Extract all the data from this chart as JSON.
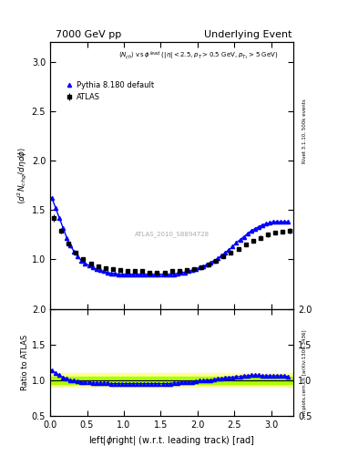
{
  "title_left": "7000 GeV pp",
  "title_right": "Underlying Event",
  "annotation": "ATLAS_2010_S8894728",
  "ylabel_main": "\\u27e8d\\u00b2 N_{chg}/d\\u03b7d\\u03d5\\u27e9",
  "ylabel_ratio": "Ratio to ATLAS",
  "xlabel": "left|\\u03d5right| (w.r.t. leading track) [rad]",
  "ylim_main": [
    0.5,
    3.2
  ],
  "ylim_ratio": [
    0.5,
    2.0
  ],
  "xlim": [
    0.0,
    3.3
  ],
  "yticks_main": [
    1.0,
    1.5,
    2.0,
    2.5,
    3.0
  ],
  "yticks_ratio": [
    0.5,
    1.0,
    1.5,
    2.0
  ],
  "right_ylabel1": "Rivet 3.1.10, 500k events",
  "right_ylabel2": "mcplots.cern.ch [arXiv:1306.3436]",
  "atlas_x": [
    0.05,
    0.15,
    0.25,
    0.35,
    0.45,
    0.55,
    0.65,
    0.75,
    0.85,
    0.95,
    1.05,
    1.15,
    1.25,
    1.35,
    1.45,
    1.55,
    1.65,
    1.75,
    1.85,
    1.95,
    2.05,
    2.15,
    2.25,
    2.35,
    2.45,
    2.55,
    2.65,
    2.75,
    2.85,
    2.95,
    3.05,
    3.15,
    3.25
  ],
  "atlas_y": [
    1.42,
    1.29,
    1.16,
    1.07,
    1.0,
    0.96,
    0.93,
    0.91,
    0.9,
    0.89,
    0.88,
    0.88,
    0.88,
    0.87,
    0.87,
    0.87,
    0.88,
    0.88,
    0.89,
    0.9,
    0.92,
    0.95,
    0.99,
    1.03,
    1.07,
    1.11,
    1.15,
    1.19,
    1.22,
    1.25,
    1.27,
    1.28,
    1.29
  ],
  "atlas_yerr": [
    0.04,
    0.03,
    0.02,
    0.02,
    0.02,
    0.02,
    0.01,
    0.01,
    0.01,
    0.01,
    0.01,
    0.01,
    0.01,
    0.01,
    0.01,
    0.01,
    0.01,
    0.01,
    0.01,
    0.01,
    0.01,
    0.01,
    0.01,
    0.01,
    0.01,
    0.01,
    0.01,
    0.02,
    0.02,
    0.02,
    0.02,
    0.02,
    0.03
  ],
  "pythia_x": [
    0.025,
    0.075,
    0.125,
    0.175,
    0.225,
    0.275,
    0.325,
    0.375,
    0.425,
    0.475,
    0.525,
    0.575,
    0.625,
    0.675,
    0.725,
    0.775,
    0.825,
    0.875,
    0.925,
    0.975,
    1.025,
    1.075,
    1.125,
    1.175,
    1.225,
    1.275,
    1.325,
    1.375,
    1.425,
    1.475,
    1.525,
    1.575,
    1.625,
    1.675,
    1.725,
    1.775,
    1.825,
    1.875,
    1.925,
    1.975,
    2.025,
    2.075,
    2.125,
    2.175,
    2.225,
    2.275,
    2.325,
    2.375,
    2.425,
    2.475,
    2.525,
    2.575,
    2.625,
    2.675,
    2.725,
    2.775,
    2.825,
    2.875,
    2.925,
    2.975,
    3.025,
    3.075,
    3.125,
    3.175,
    3.225
  ],
  "pythia_y": [
    1.62,
    1.52,
    1.42,
    1.32,
    1.22,
    1.14,
    1.08,
    1.03,
    0.99,
    0.96,
    0.94,
    0.92,
    0.9,
    0.89,
    0.88,
    0.87,
    0.86,
    0.86,
    0.85,
    0.85,
    0.85,
    0.85,
    0.85,
    0.85,
    0.85,
    0.85,
    0.85,
    0.85,
    0.85,
    0.85,
    0.85,
    0.85,
    0.85,
    0.85,
    0.86,
    0.87,
    0.87,
    0.88,
    0.89,
    0.9,
    0.92,
    0.93,
    0.95,
    0.97,
    0.99,
    1.01,
    1.04,
    1.07,
    1.1,
    1.13,
    1.17,
    1.2,
    1.23,
    1.26,
    1.29,
    1.31,
    1.33,
    1.35,
    1.36,
    1.37,
    1.38,
    1.38,
    1.38,
    1.38,
    1.38
  ],
  "ratio_x": [
    0.025,
    0.075,
    0.125,
    0.175,
    0.225,
    0.275,
    0.325,
    0.375,
    0.425,
    0.475,
    0.525,
    0.575,
    0.625,
    0.675,
    0.725,
    0.775,
    0.825,
    0.875,
    0.925,
    0.975,
    1.025,
    1.075,
    1.125,
    1.175,
    1.225,
    1.275,
    1.325,
    1.375,
    1.425,
    1.475,
    1.525,
    1.575,
    1.625,
    1.675,
    1.725,
    1.775,
    1.825,
    1.875,
    1.925,
    1.975,
    2.025,
    2.075,
    2.125,
    2.175,
    2.225,
    2.275,
    2.325,
    2.375,
    2.425,
    2.475,
    2.525,
    2.575,
    2.625,
    2.675,
    2.725,
    2.775,
    2.825,
    2.875,
    2.925,
    2.975,
    3.025,
    3.075,
    3.125,
    3.175,
    3.225
  ],
  "ratio_y": [
    1.14,
    1.1,
    1.07,
    1.04,
    1.02,
    1.0,
    0.99,
    0.98,
    0.97,
    0.97,
    0.97,
    0.96,
    0.96,
    0.96,
    0.96,
    0.96,
    0.95,
    0.95,
    0.95,
    0.95,
    0.95,
    0.95,
    0.95,
    0.95,
    0.95,
    0.95,
    0.95,
    0.95,
    0.95,
    0.95,
    0.95,
    0.95,
    0.95,
    0.96,
    0.96,
    0.97,
    0.97,
    0.97,
    0.97,
    0.98,
    0.99,
    0.99,
    1.0,
    1.0,
    1.01,
    1.02,
    1.02,
    1.03,
    1.04,
    1.04,
    1.05,
    1.05,
    1.06,
    1.06,
    1.07,
    1.07,
    1.07,
    1.06,
    1.06,
    1.06,
    1.06,
    1.06,
    1.06,
    1.06,
    1.05
  ],
  "atlas_color": "black",
  "pythia_color": "blue",
  "band_color_inner": "#aaff00",
  "band_color_outer": "#ffff99",
  "band_inner": 0.05,
  "band_outer": 0.1
}
